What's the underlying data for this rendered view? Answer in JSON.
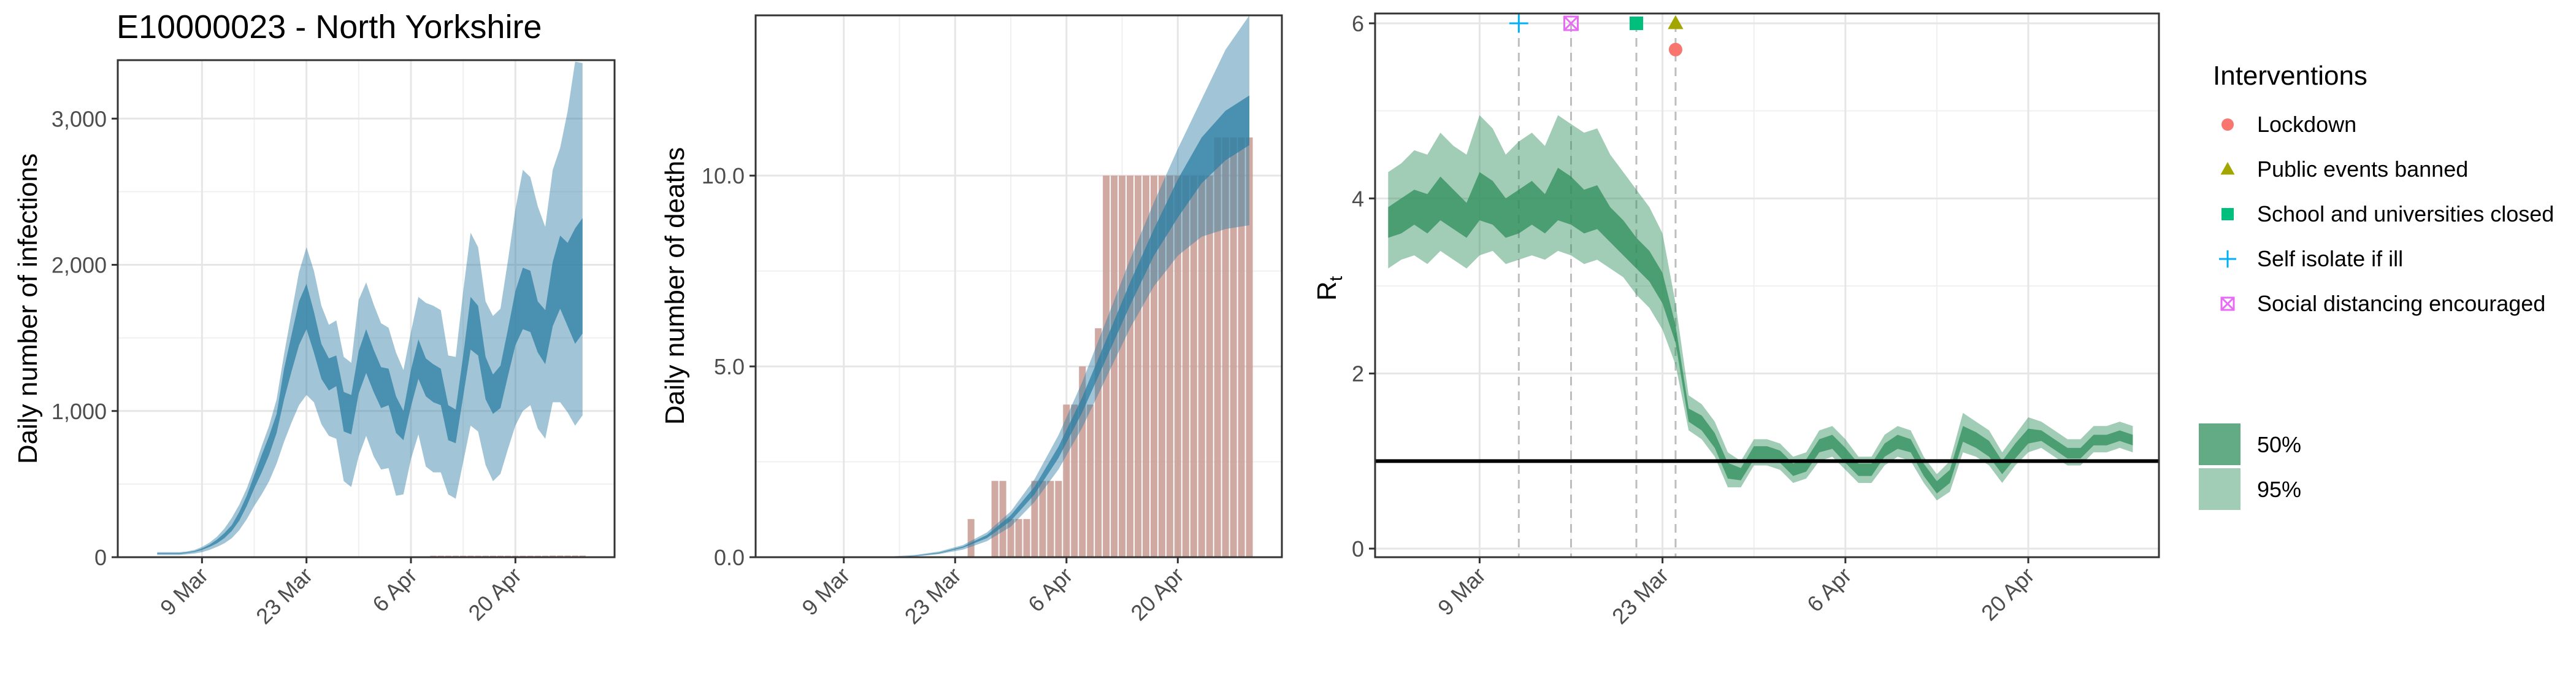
{
  "figure_title": "E10000023 - North Yorkshire",
  "colors": {
    "infections_band": "#2e7fa4",
    "deaths_bar": "#c79a92",
    "rt_band": "#2f8f5b",
    "lockdown": "#f8766d",
    "public_events": "#a3a500",
    "schools": "#00bf7d",
    "self_isolate": "#00b0f6",
    "social_distancing": "#e76bf3"
  },
  "legend": {
    "interventions_title": "Interventions",
    "interventions": [
      {
        "label": "Lockdown",
        "symbol": "circle",
        "color": "#f8766d"
      },
      {
        "label": "Public events banned",
        "symbol": "triangle",
        "color": "#a3a500"
      },
      {
        "label": "School and universities closed",
        "symbol": "square",
        "color": "#00bf7d"
      },
      {
        "label": "Self isolate if ill",
        "symbol": "plus",
        "color": "#00b0f6"
      },
      {
        "label": "Social distancing encouraged",
        "symbol": "boxcross",
        "color": "#e76bf3"
      }
    ],
    "bands": [
      {
        "label": "50%",
        "opacity": 0.75
      },
      {
        "label": "95%",
        "opacity": 0.45
      }
    ]
  },
  "chart_data": [
    {
      "type": "area",
      "ylabel": "Daily number of infections",
      "xlim": [
        0,
        60
      ],
      "ylim": [
        0,
        3400
      ],
      "x_ticks": [
        {
          "x": 8,
          "label": "9 Mar"
        },
        {
          "x": 22,
          "label": "23 Mar"
        },
        {
          "x": 36,
          "label": "6 Apr"
        },
        {
          "x": 50,
          "label": "20 Apr"
        }
      ],
      "y_ticks": [
        {
          "v": 0,
          "label": "0"
        },
        {
          "v": 1000,
          "label": "1,000"
        },
        {
          "v": 2000,
          "label": "2,000"
        },
        {
          "v": 3000,
          "label": "3,000"
        }
      ],
      "x": [
        2,
        3,
        4,
        5,
        6,
        7,
        8,
        9,
        10,
        11,
        12,
        13,
        14,
        15,
        16,
        17,
        18,
        19,
        20,
        21,
        22,
        23,
        24,
        25,
        26,
        27,
        28,
        29,
        30,
        31,
        32,
        33,
        34,
        35,
        36,
        37,
        38,
        39,
        40,
        41,
        42,
        43,
        44,
        45,
        46,
        47,
        48,
        49,
        50,
        51,
        52,
        53,
        54,
        55,
        56,
        57,
        58,
        59
      ],
      "series": [
        {
          "band": "95%",
          "lower": [
            15,
            15,
            15,
            15,
            20,
            25,
            35,
            50,
            70,
            95,
            130,
            185,
            260,
            350,
            430,
            520,
            640,
            790,
            920,
            1040,
            1110,
            1060,
            910,
            830,
            810,
            520,
            480,
            690,
            830,
            690,
            600,
            610,
            420,
            430,
            670,
            840,
            620,
            580,
            580,
            430,
            400,
            650,
            900,
            860,
            630,
            520,
            570,
            740,
            900,
            1000,
            1040,
            880,
            810,
            1060,
            1060,
            990,
            900,
            970
          ],
          "upper": [
            35,
            35,
            35,
            35,
            40,
            50,
            70,
            100,
            140,
            195,
            270,
            360,
            470,
            610,
            760,
            900,
            1080,
            1390,
            1670,
            1950,
            2120,
            1960,
            1720,
            1590,
            1620,
            1370,
            1330,
            1760,
            1880,
            1730,
            1600,
            1570,
            1400,
            1280,
            1540,
            1780,
            1740,
            1720,
            1690,
            1380,
            1370,
            1820,
            2220,
            2120,
            1750,
            1650,
            1700,
            2030,
            2380,
            2650,
            2600,
            2400,
            2260,
            2650,
            2800,
            3050,
            3390,
            3380
          ]
        },
        {
          "band": "50%",
          "lower": [
            22,
            22,
            22,
            22,
            28,
            36,
            50,
            70,
            95,
            130,
            180,
            250,
            350,
            470,
            580,
            700,
            850,
            1080,
            1270,
            1450,
            1560,
            1400,
            1220,
            1140,
            1170,
            860,
            840,
            1120,
            1260,
            1130,
            1020,
            1040,
            850,
            800,
            1030,
            1220,
            1100,
            1060,
            1040,
            800,
            780,
            1100,
            1420,
            1380,
            1080,
            980,
            1020,
            1240,
            1450,
            1560,
            1540,
            1400,
            1320,
            1580,
            1700,
            1580,
            1460,
            1530
          ],
          "upper": [
            28,
            28,
            28,
            28,
            34,
            42,
            60,
            85,
            120,
            165,
            220,
            310,
            420,
            560,
            700,
            830,
            980,
            1290,
            1520,
            1750,
            1870,
            1680,
            1460,
            1360,
            1380,
            1130,
            1110,
            1410,
            1560,
            1420,
            1300,
            1290,
            1100,
            1000,
            1280,
            1490,
            1360,
            1320,
            1290,
            1040,
            1010,
            1380,
            1780,
            1720,
            1370,
            1250,
            1310,
            1560,
            1820,
            1980,
            1960,
            1750,
            1690,
            2020,
            2200,
            2150,
            2250,
            2320
          ]
        }
      ],
      "bars": {
        "x": [
          2,
          3,
          4,
          5,
          6,
          7,
          8,
          9,
          10,
          11,
          12,
          13,
          14,
          15,
          16,
          17,
          18,
          19,
          20,
          21,
          22,
          23,
          24,
          25,
          26,
          27,
          28,
          29,
          30,
          31,
          32,
          33,
          34,
          35,
          36,
          37,
          38,
          39,
          40,
          41,
          42,
          43,
          44,
          45,
          46,
          47,
          48,
          49,
          50,
          51,
          52,
          53,
          54,
          55,
          56,
          57,
          58,
          59
        ],
        "values": [
          0,
          0,
          0,
          0,
          0,
          0,
          0,
          0,
          0,
          0,
          0,
          0,
          0,
          0,
          0,
          0,
          0,
          0,
          0,
          0,
          0,
          0,
          0,
          0,
          0,
          1,
          1,
          1,
          1,
          1,
          2,
          2,
          2,
          2,
          4,
          4,
          6,
          10,
          10,
          10,
          10,
          10,
          10,
          10,
          10,
          10,
          10,
          10,
          10,
          10,
          10,
          10,
          10,
          11,
          11,
          11,
          11,
          11
        ]
      }
    },
    {
      "type": "area",
      "ylabel": "Daily number of deaths",
      "xlim": [
        0,
        60
      ],
      "ylim": [
        0,
        14.2
      ],
      "x_ticks": [
        {
          "x": 8,
          "label": "9 Mar"
        },
        {
          "x": 22,
          "label": "23 Mar"
        },
        {
          "x": 36,
          "label": "6 Apr"
        },
        {
          "x": 50,
          "label": "20 Apr"
        }
      ],
      "y_ticks": [
        {
          "v": 0,
          "label": "0.0"
        },
        {
          "v": 5,
          "label": "5.0"
        },
        {
          "v": 10,
          "label": "10.0"
        }
      ],
      "x": [
        5,
        8,
        11,
        14,
        17,
        20,
        23,
        26,
        29,
        32,
        35,
        38,
        41,
        44,
        47,
        50,
        53,
        56,
        59
      ],
      "series": [
        {
          "band": "95%",
          "lower": [
            0,
            0,
            0,
            0,
            0.02,
            0.08,
            0.2,
            0.42,
            0.8,
            1.45,
            2.3,
            3.4,
            4.7,
            6.0,
            7.1,
            7.9,
            8.4,
            8.6,
            8.7
          ],
          "upper": [
            0,
            0,
            0,
            0.02,
            0.06,
            0.15,
            0.32,
            0.65,
            1.2,
            2.05,
            3.2,
            4.6,
            6.2,
            7.8,
            9.3,
            10.7,
            12.0,
            13.3,
            14.2
          ]
        },
        {
          "band": "50%",
          "lower": [
            0,
            0,
            0,
            0,
            0.03,
            0.1,
            0.25,
            0.5,
            0.95,
            1.65,
            2.6,
            3.8,
            5.2,
            6.6,
            7.9,
            8.9,
            9.8,
            10.4,
            10.8
          ],
          "upper": [
            0,
            0,
            0,
            0,
            0.04,
            0.12,
            0.28,
            0.58,
            1.1,
            1.85,
            2.9,
            4.2,
            5.7,
            7.2,
            8.6,
            9.9,
            11.0,
            11.7,
            12.1
          ]
        }
      ],
      "bars": {
        "x": [
          2,
          3,
          4,
          5,
          6,
          7,
          8,
          9,
          10,
          11,
          12,
          13,
          14,
          15,
          16,
          17,
          18,
          19,
          20,
          21,
          22,
          23,
          24,
          25,
          26,
          27,
          28,
          29,
          30,
          31,
          32,
          33,
          34,
          35,
          36,
          37,
          38,
          39,
          40,
          41,
          42,
          43,
          44,
          45,
          46,
          47,
          48,
          49,
          50,
          51,
          52,
          53,
          54,
          55,
          56,
          57,
          58,
          59
        ],
        "values": [
          0,
          0,
          0,
          0,
          0,
          0,
          0,
          0,
          0,
          0,
          0,
          0,
          0,
          0,
          0,
          0,
          0,
          0,
          0,
          0,
          0,
          0,
          1,
          0,
          0,
          2,
          2,
          1,
          1,
          1,
          2,
          2,
          2,
          2,
          4,
          4,
          5,
          4,
          6,
          10,
          10,
          10,
          10,
          10,
          10,
          10,
          10,
          10,
          10,
          10,
          10,
          10,
          10,
          11,
          11,
          11,
          11,
          11
        ]
      }
    },
    {
      "type": "area",
      "ylabel": "R",
      "ylabel_sub": "t",
      "xlim": [
        0,
        60
      ],
      "ylim": [
        0,
        6
      ],
      "x_ticks": [
        {
          "x": 8,
          "label": "9 Mar"
        },
        {
          "x": 22,
          "label": "23 Mar"
        },
        {
          "x": 36,
          "label": "6 Apr"
        },
        {
          "x": 50,
          "label": "20 Apr"
        }
      ],
      "y_ticks": [
        {
          "v": 0,
          "label": "0"
        },
        {
          "v": 2,
          "label": "2"
        },
        {
          "v": 4,
          "label": "4"
        },
        {
          "v": 6,
          "label": "6"
        }
      ],
      "reference_line": 1.0,
      "intervention_lines": [
        {
          "x": 11,
          "symbol": "plus",
          "y": 6.0
        },
        {
          "x": 15,
          "symbol": "boxcross",
          "y": 6.0
        },
        {
          "x": 20,
          "symbol": "square",
          "y": 6.0
        },
        {
          "x": 23,
          "symbol": "triangle",
          "y": 6.0
        },
        {
          "x": 23,
          "symbol": "circle",
          "y": 5.7
        }
      ],
      "x": [
        1,
        2,
        3,
        4,
        5,
        6,
        7,
        8,
        9,
        10,
        11,
        12,
        13,
        14,
        15,
        16,
        17,
        18,
        19,
        20,
        21,
        22,
        23,
        24,
        25,
        26,
        27,
        28,
        29,
        30,
        31,
        32,
        33,
        34,
        35,
        36,
        37,
        38,
        39,
        40,
        41,
        42,
        43,
        44,
        45,
        46,
        47,
        48,
        49,
        50,
        51,
        52,
        53,
        54,
        55,
        56,
        57,
        58
      ],
      "series": [
        {
          "band": "95%",
          "lower": [
            3.2,
            3.3,
            3.35,
            3.25,
            3.4,
            3.3,
            3.2,
            3.35,
            3.4,
            3.25,
            3.3,
            3.35,
            3.3,
            3.4,
            3.35,
            3.25,
            3.3,
            3.2,
            3.1,
            2.9,
            2.75,
            2.5,
            2.1,
            1.35,
            1.25,
            1.05,
            0.7,
            0.7,
            0.95,
            0.95,
            0.9,
            0.75,
            0.8,
            1.0,
            1.05,
            0.9,
            0.75,
            0.75,
            0.95,
            1.05,
            1.0,
            0.75,
            0.55,
            0.65,
            1.1,
            1.05,
            0.95,
            0.75,
            0.95,
            1.1,
            1.15,
            1.05,
            0.95,
            0.95,
            1.1,
            1.1,
            1.15,
            1.1
          ],
          "upper": [
            4.3,
            4.4,
            4.55,
            4.5,
            4.75,
            4.6,
            4.5,
            4.95,
            4.8,
            4.5,
            4.65,
            4.75,
            4.6,
            4.95,
            4.85,
            4.75,
            4.8,
            4.5,
            4.3,
            4.1,
            3.9,
            3.6,
            2.8,
            1.75,
            1.65,
            1.45,
            1.1,
            1.0,
            1.25,
            1.25,
            1.2,
            1.05,
            1.1,
            1.35,
            1.4,
            1.25,
            1.05,
            1.05,
            1.3,
            1.4,
            1.35,
            1.05,
            0.85,
            1.0,
            1.55,
            1.45,
            1.35,
            1.1,
            1.3,
            1.5,
            1.45,
            1.35,
            1.25,
            1.25,
            1.4,
            1.4,
            1.45,
            1.4
          ]
        },
        {
          "band": "50%",
          "lower": [
            3.55,
            3.6,
            3.7,
            3.6,
            3.75,
            3.65,
            3.55,
            3.75,
            3.7,
            3.55,
            3.6,
            3.7,
            3.6,
            3.75,
            3.7,
            3.6,
            3.65,
            3.5,
            3.35,
            3.2,
            3.05,
            2.8,
            2.35,
            1.45,
            1.35,
            1.15,
            0.8,
            0.78,
            1.02,
            1.02,
            0.98,
            0.83,
            0.88,
            1.1,
            1.14,
            0.98,
            0.83,
            0.83,
            1.05,
            1.14,
            1.1,
            0.83,
            0.63,
            0.75,
            1.22,
            1.15,
            1.05,
            0.85,
            1.03,
            1.2,
            1.23,
            1.13,
            1.03,
            1.03,
            1.18,
            1.18,
            1.23,
            1.18
          ],
          "upper": [
            3.9,
            4.0,
            4.1,
            4.05,
            4.25,
            4.1,
            3.95,
            4.3,
            4.2,
            4.0,
            4.1,
            4.2,
            4.05,
            4.35,
            4.25,
            4.1,
            4.15,
            3.9,
            3.75,
            3.55,
            3.4,
            3.15,
            2.55,
            1.6,
            1.52,
            1.32,
            0.98,
            0.92,
            1.17,
            1.17,
            1.12,
            0.97,
            1.02,
            1.25,
            1.3,
            1.15,
            0.97,
            0.97,
            1.2,
            1.3,
            1.25,
            0.97,
            0.77,
            0.9,
            1.4,
            1.33,
            1.23,
            1.0,
            1.2,
            1.37,
            1.35,
            1.25,
            1.15,
            1.15,
            1.3,
            1.3,
            1.35,
            1.3
          ]
        }
      ]
    }
  ]
}
